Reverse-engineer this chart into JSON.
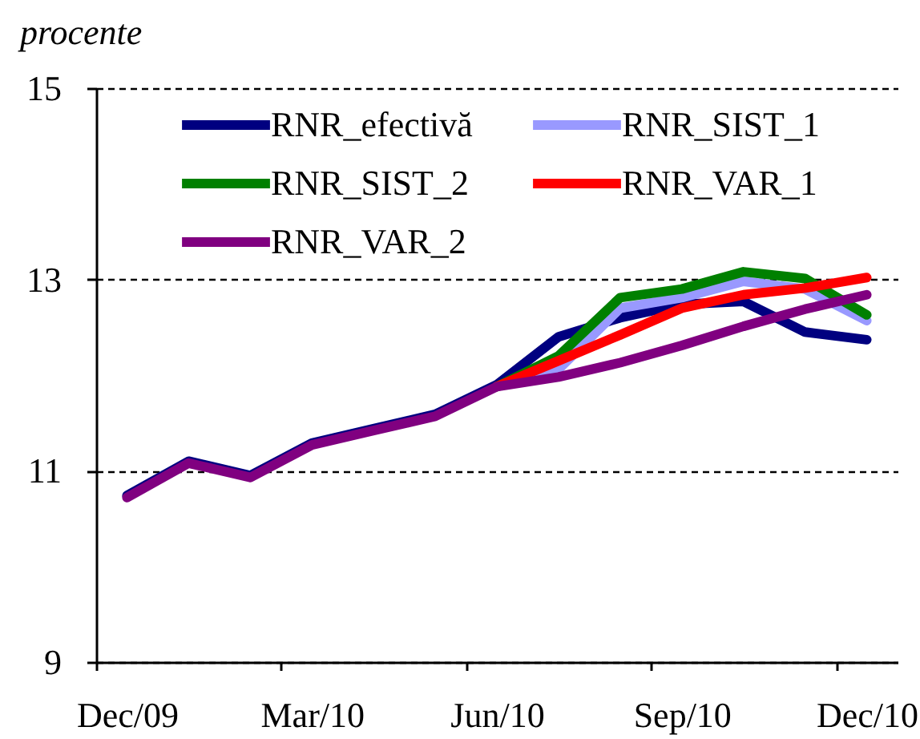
{
  "chart_data": {
    "type": "line",
    "ylabel": "procente",
    "categories": [
      "Dec/09",
      null,
      null,
      "Mar/10",
      null,
      null,
      "Jun/10",
      null,
      null,
      "Sep/10",
      null,
      null,
      "Dec/10"
    ],
    "series": [
      {
        "name": "RNR_efectivă",
        "color": "#000080",
        "values": [
          10.74,
          11.1,
          10.95,
          11.29,
          11.44,
          11.59,
          11.9,
          12.4,
          12.6,
          12.74,
          12.77,
          12.45,
          12.37
        ]
      },
      {
        "name": "RNR_SIST_1",
        "color": "#9999ff",
        "values": [
          null,
          null,
          null,
          null,
          null,
          null,
          11.88,
          12.06,
          12.7,
          12.81,
          12.98,
          12.9,
          12.57
        ]
      },
      {
        "name": "RNR_SIST_2",
        "color": "#008000",
        "values": [
          null,
          null,
          null,
          null,
          null,
          null,
          11.88,
          12.2,
          12.81,
          12.9,
          13.08,
          13.01,
          12.63
        ]
      },
      {
        "name": "RNR_VAR_1",
        "color": "#ff0000",
        "values": [
          null,
          null,
          null,
          null,
          null,
          null,
          11.88,
          12.15,
          12.42,
          12.7,
          12.84,
          12.91,
          13.02
        ]
      },
      {
        "name": "RNR_VAR_2",
        "color": "#800080",
        "values": [
          10.72,
          11.08,
          10.93,
          11.27,
          11.42,
          11.57,
          11.88,
          11.98,
          12.13,
          12.31,
          12.51,
          12.69,
          12.84
        ]
      }
    ],
    "ylim": [
      9,
      15
    ],
    "yticks": [
      9,
      11,
      13,
      15
    ],
    "grid": "y",
    "legend": "top"
  }
}
